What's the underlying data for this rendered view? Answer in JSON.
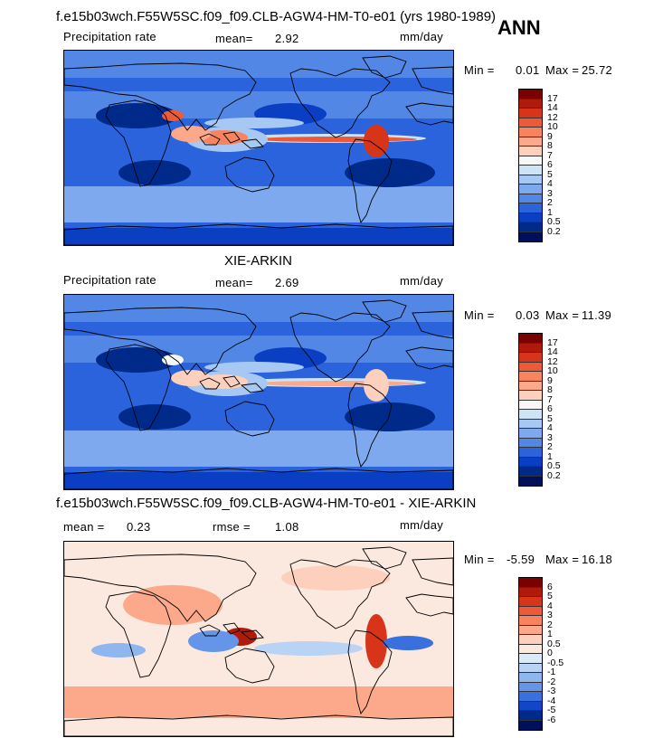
{
  "header": {
    "case_title": "f.e15b03wch.F55W5SC.f09_f09.CLB-AGW4-HM-T0-e01 (yrs 1980-1989)",
    "season": "ANN"
  },
  "panels": [
    {
      "id": "model",
      "title": "",
      "left_label": "Precipitation rate",
      "mid_label": "mean=",
      "mid_value": "2.92",
      "units": "mm/day",
      "min_label": "Min =",
      "min_value": "0.01",
      "max_label": "Max =",
      "max_value": "25.72",
      "levels": [
        "17",
        "14",
        "12",
        "10",
        "9",
        "8",
        "7",
        "6",
        "5",
        "4",
        "3",
        "2",
        "1",
        "0.5",
        "0.2"
      ],
      "colors": [
        "#7b0000",
        "#b01a0a",
        "#d8341a",
        "#ee5a38",
        "#f7835f",
        "#fba98a",
        "#fdd0bd",
        "#f7f7f7",
        "#cfe3f7",
        "#a7c8f3",
        "#7ea9ee",
        "#5287e6",
        "#2a63dc",
        "#0a3fc4",
        "#002a8a",
        "#000f5a"
      ]
    },
    {
      "id": "obs",
      "title": "XIE-ARKIN",
      "left_label": "Precipitation rate",
      "mid_label": "mean=",
      "mid_value": "2.69",
      "units": "mm/day",
      "min_label": "Min =",
      "min_value": "0.03",
      "max_label": "Max =",
      "max_value": "11.39",
      "levels": [
        "17",
        "14",
        "12",
        "10",
        "9",
        "8",
        "7",
        "6",
        "5",
        "4",
        "3",
        "2",
        "1",
        "0.5",
        "0.2"
      ],
      "colors": [
        "#7b0000",
        "#b01a0a",
        "#d8341a",
        "#ee5a38",
        "#f7835f",
        "#fba98a",
        "#fdd0bd",
        "#f7f7f7",
        "#cfe3f7",
        "#a7c8f3",
        "#7ea9ee",
        "#5287e6",
        "#2a63dc",
        "#0a3fc4",
        "#002a8a",
        "#000f5a"
      ]
    },
    {
      "id": "diff",
      "title": "f.e15b03wch.F55W5SC.f09_f09.CLB-AGW4-HM-T0-e01 - XIE-ARKIN",
      "left_label": "mean =",
      "left_value": "0.23",
      "mid_label": "rmse =",
      "mid_value": "1.08",
      "units": "mm/day",
      "min_label": "Min =",
      "min_value": "-5.59",
      "max_label": "Max =",
      "max_value": "16.18",
      "levels": [
        "6",
        "5",
        "4",
        "3",
        "2",
        "1",
        "0.5",
        "0",
        "-0.5",
        "-1",
        "-2",
        "-3",
        "-4",
        "-5",
        "-6"
      ],
      "colors": [
        "#7b0000",
        "#b01a0a",
        "#d8341a",
        "#ee5a38",
        "#f7835f",
        "#fba98a",
        "#fdd0bd",
        "#fbe8de",
        "#dbe9f8",
        "#b9d3f4",
        "#8fb6ef",
        "#6595e8",
        "#3a70dd",
        "#1346c6",
        "#002a8a",
        "#000f5a"
      ]
    }
  ],
  "chart_data": {
    "type": "heatmap",
    "variable": "Precipitation rate",
    "units": "mm/day",
    "season": "ANN",
    "panels": [
      {
        "name": "f.e15b03wch.F55W5SC.f09_f09.CLB-AGW4-HM-T0-e01 (yrs 1980-1989)",
        "mean": 2.92,
        "min": 0.01,
        "max": 25.72
      },
      {
        "name": "XIE-ARKIN",
        "mean": 2.69,
        "min": 0.03,
        "max": 11.39
      },
      {
        "name": "f.e15b03wch.F55W5SC.f09_f09.CLB-AGW4-HM-T0-e01 - XIE-ARKIN",
        "mean": 0.23,
        "rmse": 1.08,
        "min": -5.59,
        "max": 16.18
      }
    ]
  }
}
